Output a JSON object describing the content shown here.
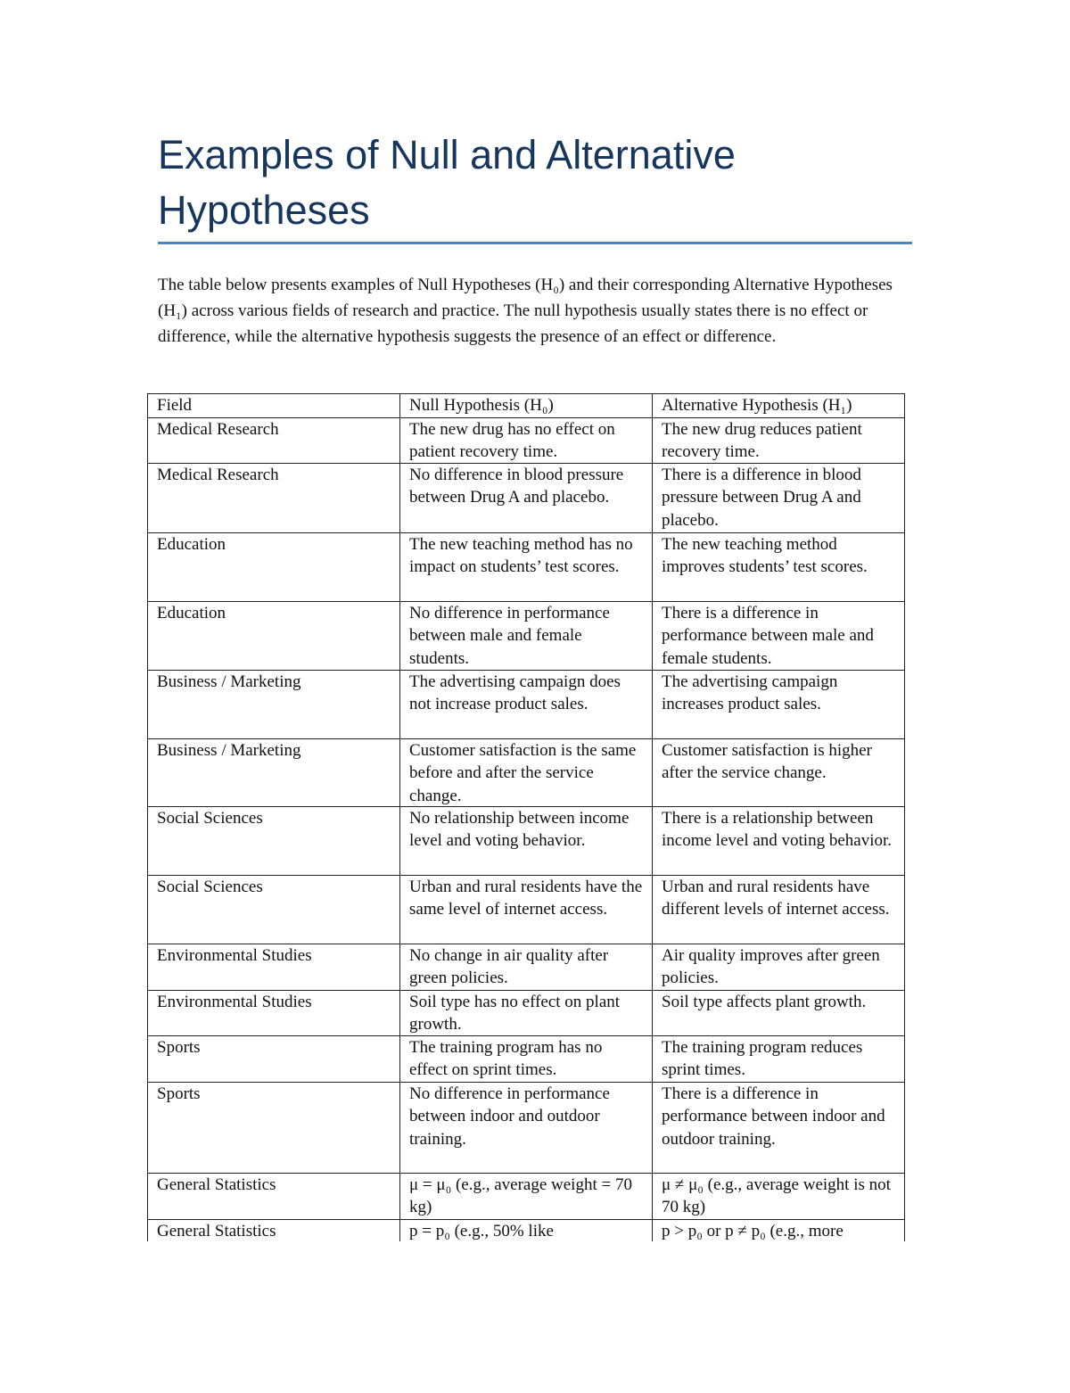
{
  "document": {
    "title": "Examples of Null and Alternative Hypotheses",
    "intro": "The table below presents examples of Null Hypotheses (H₀) and their corresponding Alternative Hypotheses (H₁) across various fields of research and practice. The null hypothesis usually states there is no effect or difference, while the alternative hypothesis suggests the presence of an effect or difference.",
    "accent_color": "#4F81BD",
    "title_color": "#17365D"
  },
  "table": {
    "headers": [
      "Field",
      "Null Hypothesis (H₀)",
      "Alternative Hypothesis (H₁)"
    ],
    "rows": [
      [
        "Medical Research",
        "The new drug has no effect on patient recovery time.",
        "The new drug reduces patient recovery time."
      ],
      [
        "Medical Research",
        "No difference in blood pressure between Drug A and placebo.",
        "There is a difference in blood pressure between Drug A and placebo."
      ],
      [
        "Education",
        "The new teaching method has no impact on students’ test scores.",
        "The new teaching method improves students’ test scores."
      ],
      [
        "Education",
        "No difference in performance between male and female students.",
        "There is a difference in performance between male and female students."
      ],
      [
        "Business / Marketing",
        "The advertising campaign does not increase product sales.",
        "The advertising campaign increases product sales."
      ],
      [
        "Business / Marketing",
        "Customer satisfaction is the same before and after the service change.",
        "Customer satisfaction is higher after the service change."
      ],
      [
        "Social Sciences",
        "No relationship between income level and voting behavior.",
        "There is a relationship between income level and voting behavior."
      ],
      [
        "Social Sciences",
        "Urban and rural residents have the same level of internet access.",
        "Urban and rural residents have different levels of internet access."
      ],
      [
        "Environmental Studies",
        "No change in air quality after green policies.",
        "Air quality improves after green policies."
      ],
      [
        "Environmental Studies",
        "Soil type has no effect on plant growth.",
        "Soil type affects plant growth."
      ],
      [
        "Sports",
        "The training program has no effect on sprint times.",
        "The training program reduces sprint times."
      ],
      [
        "Sports",
        "No difference in performance between indoor and outdoor training.",
        "There is a difference in performance between indoor and outdoor training."
      ],
      [
        "General Statistics",
        "μ = μ₀ (e.g., average weight = 70 kg)",
        "μ ≠ μ₀ (e.g., average weight is not 70 kg)"
      ],
      [
        "General Statistics",
        "p = p₀ (e.g., 50% like",
        "p > p₀ or p ≠ p₀ (e.g., more"
      ]
    ]
  }
}
